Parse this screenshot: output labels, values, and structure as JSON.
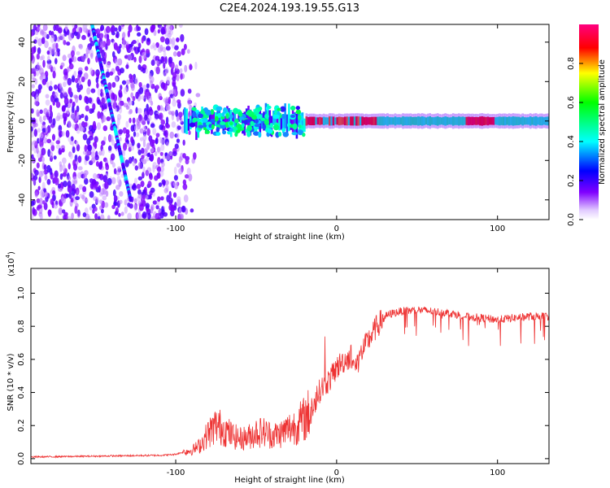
{
  "title": "C2E4.2024.193.19.55.G13",
  "chart_data": [
    {
      "type": "heatmap",
      "name": "spectrogram",
      "xlabel": "Height of straight line (km)",
      "ylabel": "Frequency (Hz)",
      "xlim": [
        -190,
        132
      ],
      "ylim": [
        -50,
        49
      ],
      "xticks": [
        -100,
        0,
        100
      ],
      "xtick_labels": [
        "-100",
        "0",
        "100"
      ],
      "yticks": [
        -40,
        -20,
        0,
        20,
        40
      ],
      "ytick_labels": [
        "-40",
        "-20",
        "0",
        "20",
        "40"
      ],
      "colorbar": {
        "label": "Normalized spectral amplitude",
        "range": [
          0,
          1
        ],
        "ticks": [
          0.0,
          0.2,
          0.4,
          0.6,
          0.8
        ],
        "tick_labels": [
          "0.0",
          "0.2",
          "0.4",
          "0.6",
          "0.8"
        ],
        "colors": [
          "#ffffff",
          "#8000ff",
          "#0000ff",
          "#00ffff",
          "#00ff00",
          "#ffff00",
          "#ff0000",
          "#ff0080"
        ]
      },
      "features": [
        {
          "name": "diagonal streak",
          "x_start": -152,
          "y_start": 49,
          "x_end": -128,
          "y_end": -40
        },
        {
          "name": "noise field",
          "x_range": [
            -190,
            -85
          ],
          "y_range": [
            -50,
            49
          ]
        },
        {
          "name": "carrier line",
          "x_range": [
            -95,
            132
          ],
          "frequency": 0
        }
      ]
    },
    {
      "type": "line",
      "name": "snr",
      "xlabel": "Height of straight line (km)",
      "ylabel": "SNR (10 * v/v)",
      "y_multiplier": "(x10",
      "y_multiplier_exp": "4",
      "y_multiplier_close": ")",
      "xlim": [
        -190,
        132
      ],
      "ylim": [
        -0.03,
        1.15
      ],
      "xticks": [
        -100,
        0,
        100
      ],
      "xtick_labels": [
        "-100",
        "0",
        "100"
      ],
      "yticks": [
        0.0,
        0.2,
        0.4,
        0.6,
        0.8,
        1.0
      ],
      "ytick_labels": [
        "0.0",
        "0.2",
        "0.4",
        "0.6",
        "0.8",
        "1.0"
      ],
      "series": [
        {
          "name": "SNR",
          "color": "#ee3333",
          "x": [
            -190,
            -150,
            -110,
            -101,
            -95,
            -90,
            -85,
            -80,
            -75,
            -70,
            -65,
            -60,
            -55,
            -50,
            -45,
            -40,
            -35,
            -30,
            -25,
            -20,
            -15,
            -12,
            -10,
            -7,
            -4,
            0,
            3,
            6,
            9,
            11,
            13,
            16,
            20,
            25,
            30,
            35,
            40,
            50,
            60,
            70,
            80,
            90,
            100,
            110,
            120,
            132
          ],
          "values": [
            0.01,
            0.015,
            0.02,
            0.025,
            0.04,
            0.05,
            0.08,
            0.15,
            0.2,
            0.18,
            0.14,
            0.12,
            0.13,
            0.16,
            0.16,
            0.14,
            0.15,
            0.18,
            0.2,
            0.24,
            0.3,
            0.38,
            0.42,
            0.45,
            0.48,
            0.55,
            0.58,
            0.6,
            0.62,
            0.55,
            0.58,
            0.65,
            0.72,
            0.8,
            0.86,
            0.88,
            0.89,
            0.9,
            0.89,
            0.88,
            0.86,
            0.85,
            0.84,
            0.85,
            0.86,
            0.86
          ]
        }
      ]
    }
  ]
}
